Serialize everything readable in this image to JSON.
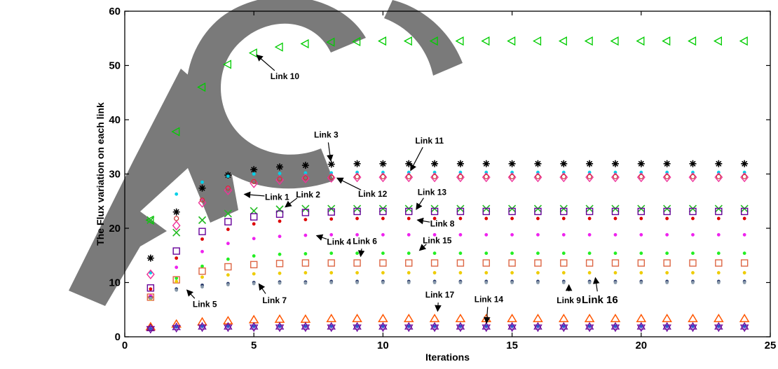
{
  "chart_data": {
    "type": "scatter",
    "title": "",
    "xlabel": "Iterations",
    "ylabel": "The Flux variation on each link",
    "xlim": [
      0,
      25
    ],
    "ylim": [
      0,
      60
    ],
    "xticks": [
      0,
      5,
      10,
      15,
      20,
      25
    ],
    "yticks": [
      0,
      10,
      20,
      30,
      40,
      50,
      60
    ],
    "grid": false,
    "x": [
      1,
      2,
      3,
      4,
      5,
      6,
      7,
      8,
      9,
      10,
      11,
      12,
      13,
      14,
      15,
      16,
      17,
      18,
      19,
      20,
      21,
      22,
      23,
      24
    ],
    "series": [
      {
        "name": "Link 10",
        "marker": "triangle-left",
        "color": "#00cc00",
        "values": [
          21.5,
          37.8,
          46,
          50.2,
          52.3,
          53.4,
          54,
          54.3,
          54.4,
          54.5,
          54.5,
          54.5,
          54.5,
          54.5,
          54.5,
          54.5,
          54.5,
          54.5,
          54.5,
          54.5,
          54.5,
          54.5,
          54.5,
          54.5
        ]
      },
      {
        "name": "Link 3",
        "marker": "asterisk",
        "color": "#000000",
        "values": [
          14.5,
          23,
          27.4,
          29.8,
          30.8,
          31.3,
          31.6,
          31.8,
          31.9,
          31.9,
          31.9,
          31.9,
          31.9,
          31.9,
          31.9,
          31.9,
          31.9,
          31.9,
          31.9,
          31.9,
          31.9,
          31.9,
          31.9,
          31.9
        ]
      },
      {
        "name": "Link 11",
        "marker": "dot",
        "color": "#00d0e8",
        "values": [
          11.8,
          26.3,
          28.5,
          29.6,
          30,
          30.1,
          30.2,
          30.2,
          30.3,
          30.3,
          30.3,
          30.3,
          30.3,
          30.3,
          30.3,
          30.3,
          30.3,
          30.3,
          30.3,
          30.3,
          30.3,
          30.3,
          30.3,
          30.3
        ]
      },
      {
        "name": "Link 12",
        "marker": "diamond",
        "color": "#ee3399",
        "values": [
          11.5,
          20.5,
          24.7,
          27,
          28.3,
          28.9,
          29.2,
          29.3,
          29.4,
          29.4,
          29.4,
          29.4,
          29.4,
          29.4,
          29.4,
          29.4,
          29.4,
          29.4,
          29.4,
          29.4,
          29.4,
          29.4,
          29.4,
          29.4
        ]
      },
      {
        "name": "Link 1",
        "marker": "circle",
        "color": "#cc3333",
        "values": [
          7.3,
          21.8,
          25.2,
          27.4,
          28.6,
          29.1,
          29.3,
          29.4,
          29.5,
          29.5,
          29.5,
          29.5,
          29.5,
          29.5,
          29.5,
          29.5,
          29.5,
          29.5,
          29.5,
          29.5,
          29.5,
          29.5,
          29.5,
          29.5
        ]
      },
      {
        "name": "Link 2",
        "marker": "x",
        "color": "#22bb22",
        "values": [
          21.5,
          19.2,
          21.5,
          22.7,
          23.2,
          23.5,
          23.6,
          23.6,
          23.6,
          23.6,
          23.6,
          23.6,
          23.6,
          23.6,
          23.6,
          23.6,
          23.6,
          23.6,
          23.6,
          23.6,
          23.6,
          23.6,
          23.6,
          23.6
        ]
      },
      {
        "name": "Link 13",
        "marker": "square",
        "color": "#660099",
        "values": [
          9,
          15.8,
          19.4,
          21.2,
          22.1,
          22.6,
          22.9,
          23,
          23.1,
          23.1,
          23.1,
          23.1,
          23.1,
          23.1,
          23.1,
          23.1,
          23.1,
          23.1,
          23.1,
          23.1,
          23.1,
          23.1,
          23.1,
          23.1
        ]
      },
      {
        "name": "Link 8",
        "marker": "dot",
        "color": "#dd0000",
        "values": [
          8.8,
          14.5,
          18,
          19.8,
          20.8,
          21.3,
          21.6,
          21.7,
          21.8,
          21.8,
          21.8,
          21.8,
          21.8,
          21.8,
          21.8,
          21.8,
          21.8,
          21.8,
          21.8,
          21.8,
          21.8,
          21.8,
          21.8,
          21.8
        ]
      },
      {
        "name": "Link 4",
        "marker": "dot",
        "color": "#ee22ee",
        "values": [
          7.5,
          12.8,
          15.7,
          17.2,
          18.1,
          18.5,
          18.7,
          18.8,
          18.8,
          18.8,
          18.8,
          18.8,
          18.8,
          18.8,
          18.8,
          18.8,
          18.8,
          18.8,
          18.8,
          18.8,
          18.8,
          18.8,
          18.8,
          18.8
        ]
      },
      {
        "name": "Link 15",
        "marker": "dot",
        "color": "#22ee22",
        "values": [
          7,
          10.8,
          13,
          14.3,
          14.9,
          15.2,
          15.3,
          15.4,
          15.4,
          15.4,
          15.4,
          15.4,
          15.4,
          15.4,
          15.4,
          15.4,
          15.4,
          15.4,
          15.4,
          15.4,
          15.4,
          15.4,
          15.4,
          15.4
        ]
      },
      {
        "name": "Link 6",
        "marker": "square",
        "color": "#dd6644",
        "values": [
          7.3,
          10.5,
          12.1,
          12.9,
          13.3,
          13.5,
          13.6,
          13.6,
          13.6,
          13.6,
          13.6,
          13.6,
          13.6,
          13.6,
          13.6,
          13.6,
          13.6,
          13.6,
          13.6,
          13.6,
          13.6,
          13.6,
          13.6,
          13.6
        ]
      },
      {
        "name": "Link 16",
        "marker": "dot",
        "color": "#eecc00",
        "values": [
          7,
          10.2,
          11,
          11.4,
          11.6,
          11.7,
          11.8,
          11.8,
          11.8,
          11.8,
          11.8,
          11.8,
          11.8,
          11.8,
          11.8,
          11.8,
          11.8,
          11.8,
          11.8,
          11.8,
          11.8,
          11.8,
          11.8,
          11.8
        ]
      },
      {
        "name": "Link 7",
        "marker": "dot",
        "color": "#223366",
        "values": [
          7.2,
          8.8,
          9.5,
          9.8,
          10,
          10.1,
          10.1,
          10.2,
          10.2,
          10.2,
          10.2,
          10.2,
          10.2,
          10.2,
          10.2,
          10.2,
          10.2,
          10.2,
          10.2,
          10.2,
          10.2,
          10.2,
          10.2,
          10.2
        ]
      },
      {
        "name": "Link 9",
        "marker": "dot",
        "color": "#8899aa",
        "values": [
          7.1,
          8.6,
          9.2,
          9.6,
          9.8,
          9.9,
          9.9,
          10,
          10,
          10,
          10,
          10,
          10,
          10,
          10,
          10,
          10,
          10,
          10,
          10,
          10,
          10,
          10,
          10
        ]
      },
      {
        "name": "Link 17",
        "marker": "triangle-up",
        "color": "#ff5500",
        "values": [
          1.8,
          2.3,
          2.7,
          2.9,
          3.1,
          3.2,
          3.2,
          3.3,
          3.3,
          3.3,
          3.3,
          3.3,
          3.3,
          3.3,
          3.3,
          3.3,
          3.3,
          3.3,
          3.3,
          3.3,
          3.3,
          3.3,
          3.3,
          3.3
        ]
      },
      {
        "name": "Link 14",
        "marker": "hexagram",
        "color": "#660099",
        "values": [
          1.5,
          1.7,
          1.8,
          1.8,
          1.8,
          1.8,
          1.8,
          1.8,
          1.8,
          1.8,
          1.8,
          1.8,
          1.8,
          1.8,
          1.8,
          1.8,
          1.8,
          1.8,
          1.8,
          1.8,
          1.8,
          1.8,
          1.8,
          1.8
        ]
      },
      {
        "name": "Link 5",
        "marker": "dot",
        "color": "#3355cc",
        "values": [
          1.5,
          1.8,
          1.9,
          1.9,
          1.9,
          1.9,
          1.9,
          1.9,
          1.9,
          1.9,
          1.9,
          1.9,
          1.9,
          1.9,
          1.9,
          1.9,
          1.9,
          1.9,
          1.9,
          1.9,
          1.9,
          1.9,
          1.9,
          1.9
        ]
      }
    ],
    "annotations": [
      {
        "text": "Link 10",
        "point": [
          5,
          52.3
        ],
        "label_at": [
          6.2,
          47.5
        ],
        "big": false
      },
      {
        "text": "Link 3",
        "point": [
          8,
          31.8
        ],
        "label_at": [
          7.8,
          36.7
        ],
        "big": false
      },
      {
        "text": "Link 11",
        "point": [
          11,
          30.1
        ],
        "label_at": [
          11.8,
          35.6
        ],
        "big": false
      },
      {
        "text": "Link 12",
        "point": [
          8.1,
          29.5
        ],
        "label_at": [
          9.6,
          25.8
        ],
        "big": false
      },
      {
        "text": "Link 1",
        "point": [
          4.5,
          26.3
        ],
        "label_at": [
          5.9,
          25.2
        ],
        "big": false
      },
      {
        "text": "Link 2",
        "point": [
          6.1,
          23.6
        ],
        "label_at": [
          7.1,
          25.7
        ],
        "big": false
      },
      {
        "text": "Link 13",
        "point": [
          11.2,
          23
        ],
        "label_at": [
          11.9,
          26.1
        ],
        "big": false
      },
      {
        "text": "Link 8",
        "point": [
          11.2,
          21.6
        ],
        "label_at": [
          12.3,
          20.3
        ],
        "big": false
      },
      {
        "text": "Link 4",
        "point": [
          7.3,
          18.8
        ],
        "label_at": [
          8.3,
          17
        ],
        "big": false
      },
      {
        "text": "Link 6",
        "point": [
          9.1,
          14.2
        ],
        "label_at": [
          9.3,
          17.1
        ],
        "big": false
      },
      {
        "text": "Link 15",
        "point": [
          11.3,
          15.6
        ],
        "label_at": [
          12.1,
          17.2
        ],
        "big": false
      },
      {
        "text": "Link 5",
        "point": [
          2.3,
          9
        ],
        "label_at": [
          3.1,
          5.5
        ],
        "big": false
      },
      {
        "text": "Link 7",
        "point": [
          5.1,
          10.2
        ],
        "label_at": [
          5.8,
          6.2
        ],
        "big": false
      },
      {
        "text": "Link 9",
        "point": [
          17.2,
          10.2
        ],
        "label_at": [
          17.2,
          6.2
        ],
        "big": false
      },
      {
        "text": "Link 16",
        "point": [
          18.2,
          11.5
        ],
        "label_at": [
          18.4,
          6.2
        ],
        "big": true
      },
      {
        "text": "Link 17",
        "point": [
          12.1,
          4.1
        ],
        "label_at": [
          12.2,
          7.2
        ],
        "big": false
      },
      {
        "text": "Link 14",
        "point": [
          14,
          1.9
        ],
        "label_at": [
          14.1,
          6.4
        ],
        "big": false
      }
    ],
    "watermark": "Acc"
  }
}
